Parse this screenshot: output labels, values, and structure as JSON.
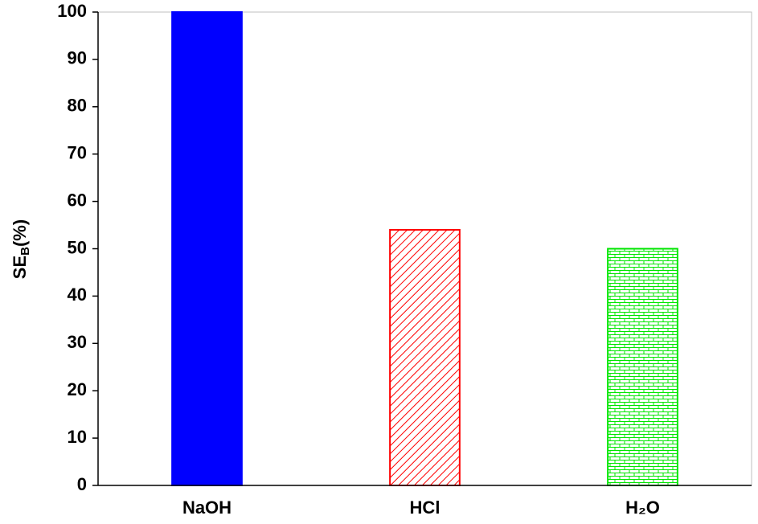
{
  "chart_data": {
    "type": "bar",
    "y_label": [
      "SE",
      "B",
      "(%)"
    ],
    "categories": [
      "NaOH",
      "HCl",
      "H₂O"
    ],
    "values": [
      100,
      54,
      50
    ],
    "colors": [
      "#0000ff",
      "#ff0000",
      "#00e600"
    ],
    "patterns": [
      "solid",
      "hatch",
      "brick"
    ],
    "ylim": [
      0,
      100
    ],
    "yticks": [
      0,
      10,
      20,
      30,
      40,
      50,
      60,
      70,
      80,
      90,
      100
    ]
  }
}
